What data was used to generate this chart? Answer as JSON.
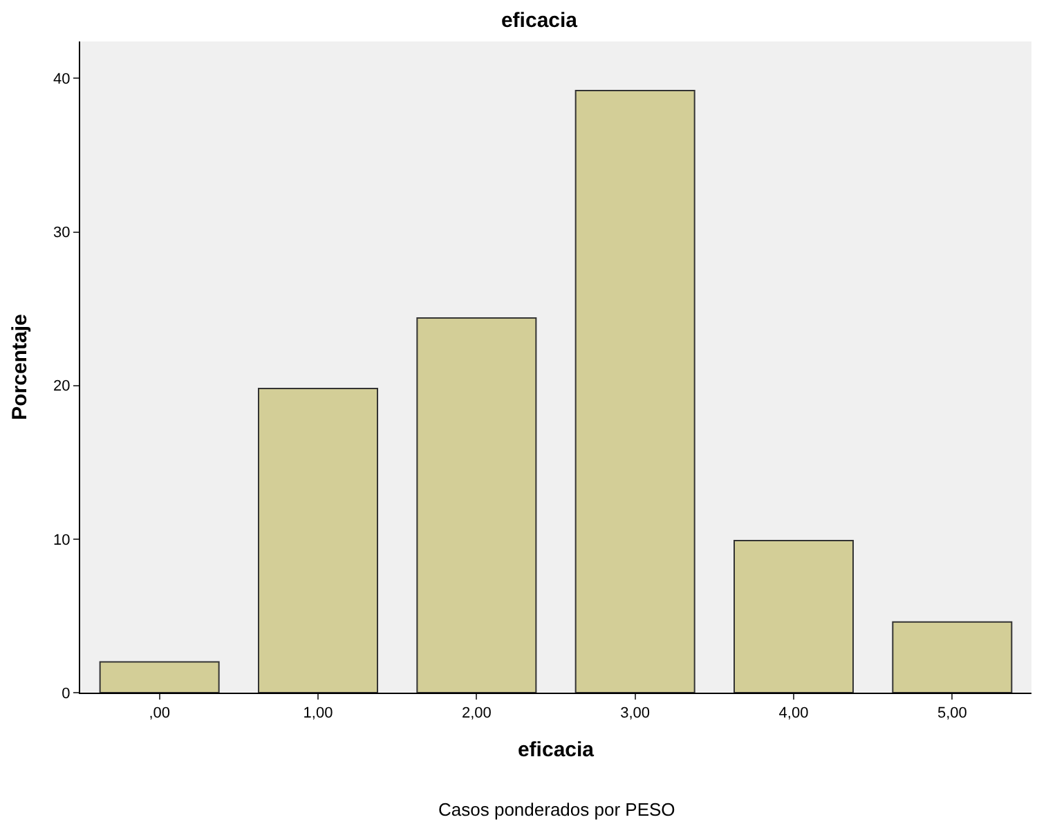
{
  "chart_data": {
    "type": "bar",
    "title": "eficacia",
    "xlabel": "eficacia",
    "ylabel": "Porcentaje",
    "categories": [
      ",00",
      "1,00",
      "2,00",
      "3,00",
      "4,00",
      "5,00"
    ],
    "values": [
      2.0,
      19.8,
      24.4,
      39.2,
      9.9,
      4.6
    ],
    "color": "#d3ce97",
    "ylim": [
      0,
      42.4
    ],
    "yticks": [
      0,
      10,
      20,
      30,
      40
    ],
    "grid": false,
    "annotations": [
      "Casos ponderados por PESO"
    ]
  }
}
